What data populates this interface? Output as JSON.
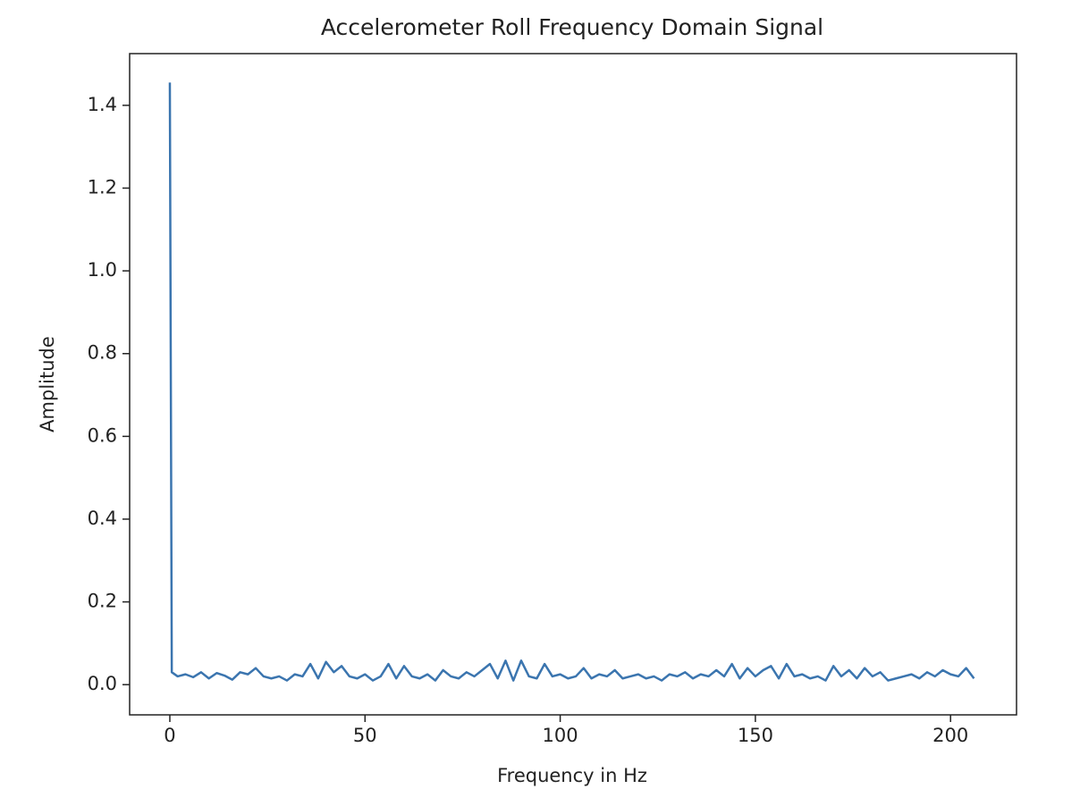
{
  "chart_data": {
    "type": "line",
    "title": "Accelerometer Roll Frequency Domain Signal",
    "x_label": "Frequency in Hz",
    "y_label": "Amplitude",
    "x": [
      0,
      0.5,
      2,
      4,
      6,
      8,
      10,
      12,
      14,
      16,
      18,
      20,
      22,
      24,
      26,
      28,
      30,
      32,
      34,
      36,
      38,
      40,
      42,
      44,
      46,
      48,
      50,
      52,
      54,
      56,
      58,
      60,
      62,
      64,
      66,
      68,
      70,
      72,
      74,
      76,
      78,
      80,
      82,
      84,
      86,
      88,
      90,
      92,
      94,
      96,
      98,
      100,
      102,
      104,
      106,
      108,
      110,
      112,
      114,
      116,
      118,
      120,
      122,
      124,
      126,
      128,
      130,
      132,
      134,
      136,
      138,
      140,
      142,
      144,
      146,
      148,
      150,
      152,
      154,
      156,
      158,
      160,
      162,
      164,
      166,
      168,
      170,
      172,
      174,
      176,
      178,
      180,
      182,
      184,
      186,
      188,
      190,
      192,
      194,
      196,
      198,
      200,
      202,
      204,
      206
    ],
    "series": [
      {
        "name": "Roll",
        "color": "#3b75af",
        "values": [
          1.455,
          0.03,
          0.02,
          0.025,
          0.018,
          0.03,
          0.015,
          0.028,
          0.022,
          0.012,
          0.03,
          0.025,
          0.04,
          0.02,
          0.015,
          0.02,
          0.01,
          0.025,
          0.02,
          0.05,
          0.015,
          0.055,
          0.03,
          0.045,
          0.02,
          0.015,
          0.025,
          0.01,
          0.02,
          0.05,
          0.015,
          0.045,
          0.02,
          0.015,
          0.025,
          0.01,
          0.035,
          0.02,
          0.015,
          0.03,
          0.02,
          0.035,
          0.05,
          0.015,
          0.058,
          0.01,
          0.058,
          0.02,
          0.015,
          0.05,
          0.02,
          0.025,
          0.015,
          0.02,
          0.04,
          0.015,
          0.025,
          0.02,
          0.035,
          0.015,
          0.02,
          0.025,
          0.015,
          0.02,
          0.01,
          0.025,
          0.02,
          0.03,
          0.015,
          0.025,
          0.02,
          0.035,
          0.02,
          0.05,
          0.015,
          0.04,
          0.02,
          0.035,
          0.045,
          0.015,
          0.05,
          0.02,
          0.025,
          0.015,
          0.02,
          0.01,
          0.045,
          0.02,
          0.035,
          0.015,
          0.04,
          0.02,
          0.03,
          0.01,
          0.015,
          0.02,
          0.025,
          0.015,
          0.03,
          0.02,
          0.035,
          0.025,
          0.02,
          0.04,
          0.015
        ]
      }
    ],
    "xlim": [
      -10.3,
      216.9
    ],
    "ylim": [
      -0.073,
      1.525
    ],
    "xticks": [
      0,
      50,
      100,
      150,
      200
    ],
    "yticks": [
      {
        "value": 0,
        "label": "0.0"
      },
      0.2,
      0.4,
      0.6,
      0.8,
      {
        "value": 1,
        "label": "1.0"
      },
      1.2,
      1.4
    ],
    "grid": false
  }
}
